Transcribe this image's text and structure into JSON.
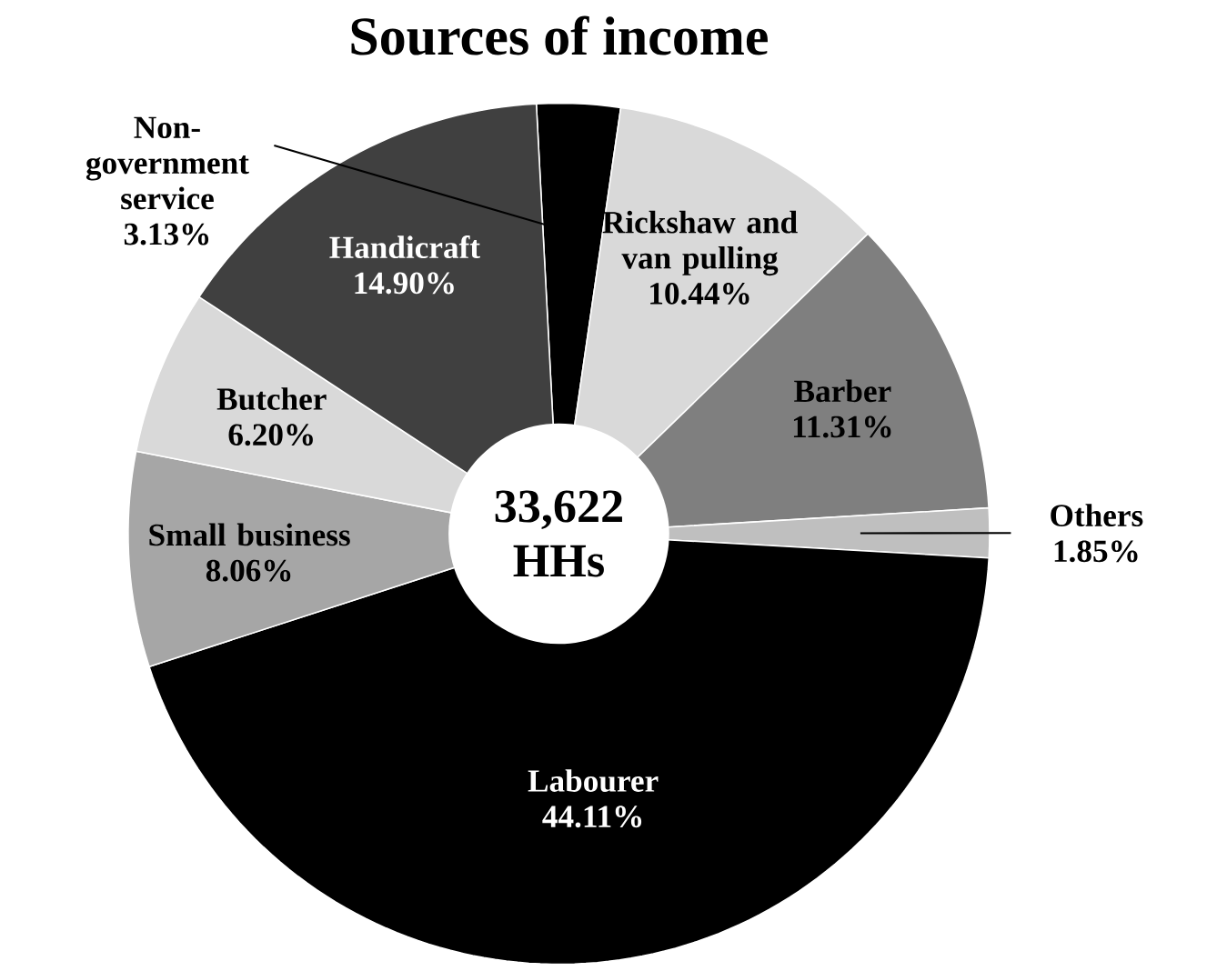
{
  "chart_data": {
    "type": "donut",
    "title": "Sources of income",
    "categories": [
      "Non-government service",
      "Rickshaw and van pulling",
      "Barber",
      "Others",
      "Labourer",
      "Small business",
      "Butcher",
      "Handicraft"
    ],
    "values": [
      3.13,
      10.44,
      11.31,
      1.85,
      44.11,
      8.06,
      6.2,
      14.9
    ],
    "value_labels": [
      "3.13%",
      "10.44%",
      "11.31%",
      "1.85%",
      "44.11%",
      "8.06%",
      "6.20%",
      "14.90%"
    ],
    "colors": [
      "#000000",
      "#d9d9d9",
      "#7f7f7f",
      "#bfbfbf",
      "#000000",
      "#a6a6a6",
      "#d9d9d9",
      "#404040"
    ],
    "annotations": [
      "33,622 HHs"
    ]
  }
}
